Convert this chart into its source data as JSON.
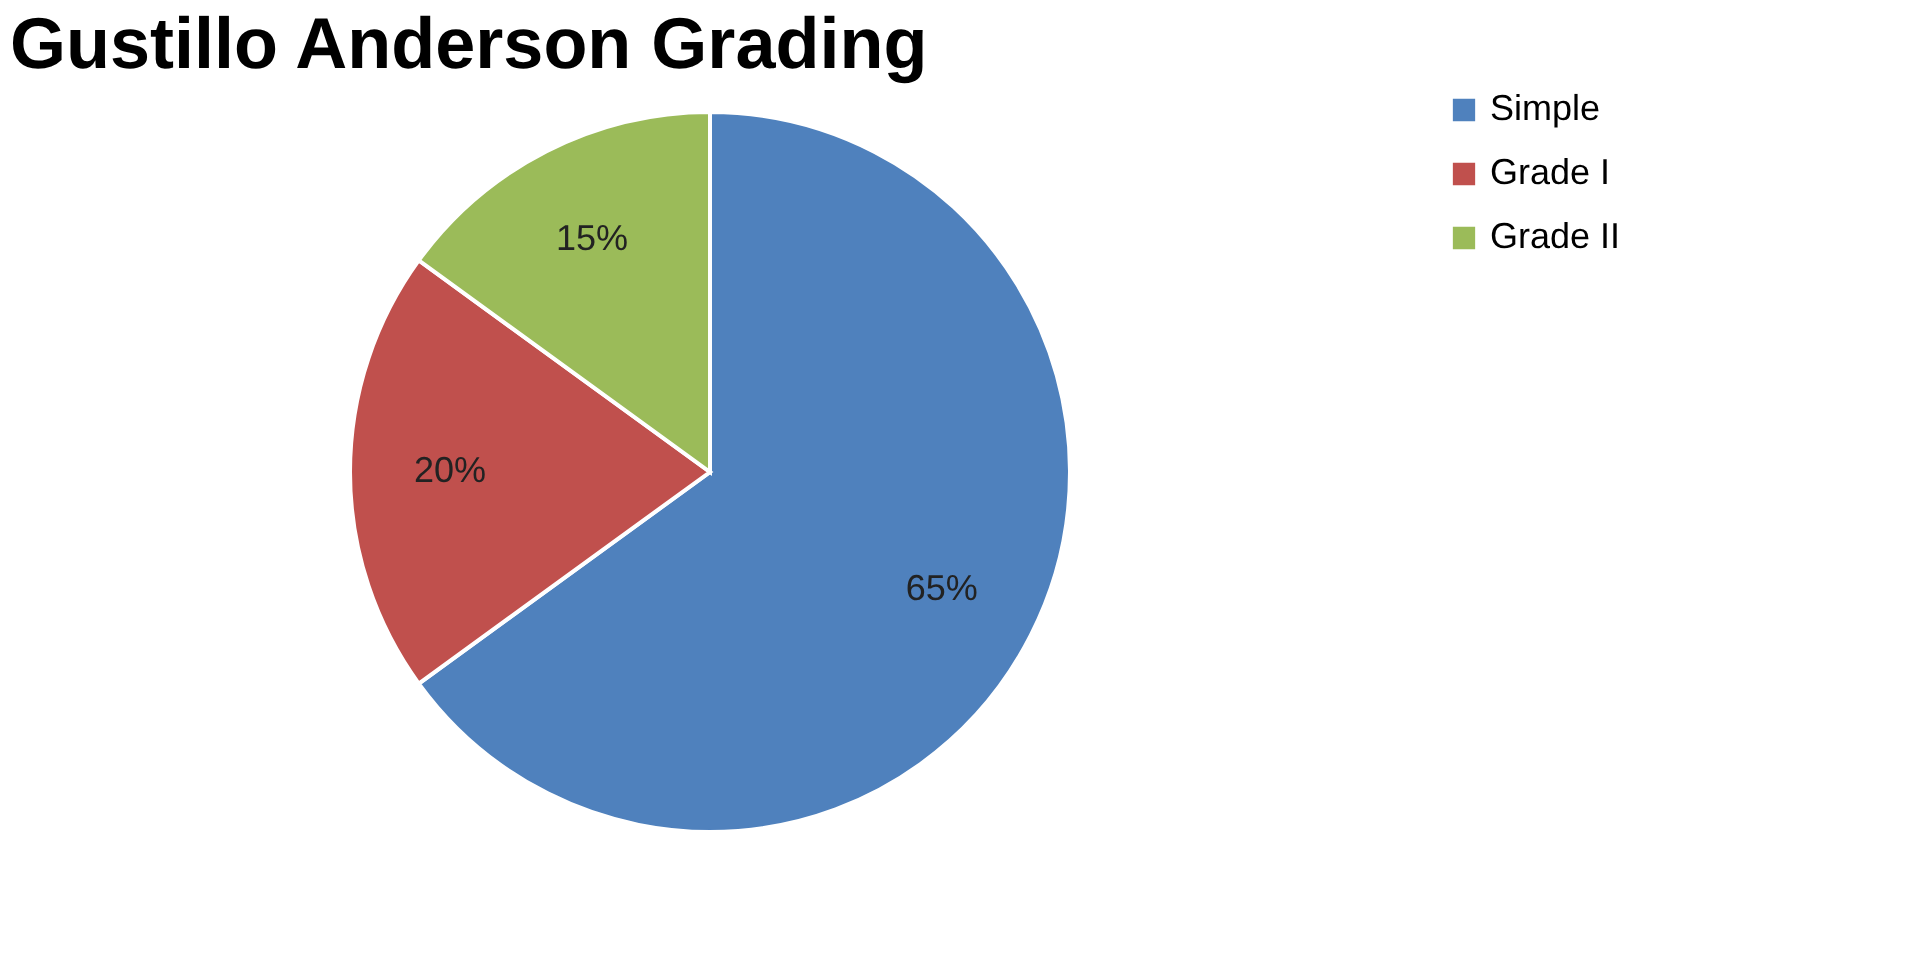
{
  "chart_data": {
    "type": "pie",
    "title": "Gustillo Anderson Grading",
    "categories": [
      "Simple",
      "Grade I",
      "Grade II"
    ],
    "values": [
      65,
      20,
      15
    ],
    "colors": [
      "#4f81bd",
      "#c0504d",
      "#9bbb59"
    ],
    "value_labels": [
      "65%",
      "20%",
      "15%"
    ],
    "legend": "right"
  }
}
